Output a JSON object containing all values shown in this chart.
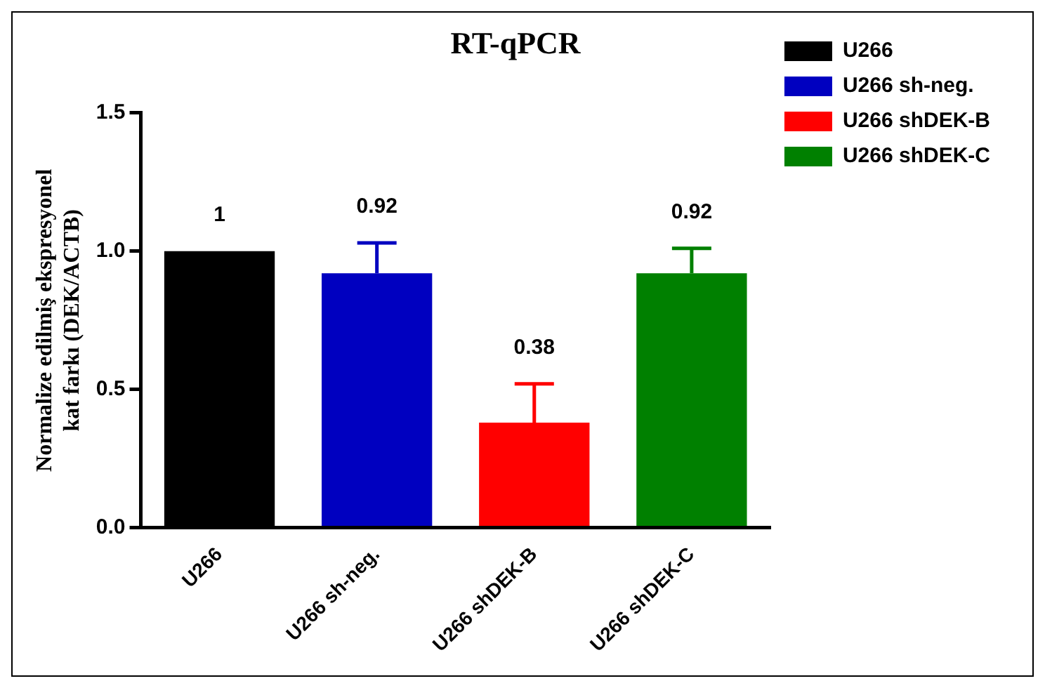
{
  "chart_data": {
    "type": "bar",
    "title": "RT-qPCR",
    "ylabel": "Normalize edilmiş ekspresyonel kat farkı (DEK/ACTB)",
    "categories": [
      "U266",
      "U266 sh-neg.",
      "U266 shDEK-B",
      "U266 shDEK-C"
    ],
    "series": [
      {
        "name": "U266",
        "color": "#000000",
        "values": [
          1,
          null,
          null,
          null
        ],
        "errors": [
          null,
          null,
          null,
          null
        ]
      },
      {
        "name": "U266 sh-neg.",
        "color": "#0000c0",
        "values": [
          null,
          0.92,
          null,
          null
        ],
        "errors": [
          null,
          0.11,
          null,
          null
        ]
      },
      {
        "name": "U266 shDEK-B",
        "color": "#ff0000",
        "values": [
          null,
          null,
          0.38,
          null
        ],
        "errors": [
          null,
          null,
          0.14,
          null
        ]
      },
      {
        "name": "U266 shDEK-C",
        "color": "#008000",
        "values": [
          null,
          null,
          null,
          0.92
        ],
        "errors": [
          null,
          null,
          null,
          0.09
        ]
      }
    ],
    "data_labels": true,
    "ylim": [
      0,
      1.5
    ],
    "yticks": [
      {
        "value": 0,
        "label": "0.0"
      },
      {
        "value": 0.5,
        "label": "0.5"
      },
      {
        "value": 1,
        "label": "1.0"
      },
      {
        "value": 1.5,
        "label": "1.5"
      }
    ],
    "grid": false,
    "legend": "right"
  }
}
